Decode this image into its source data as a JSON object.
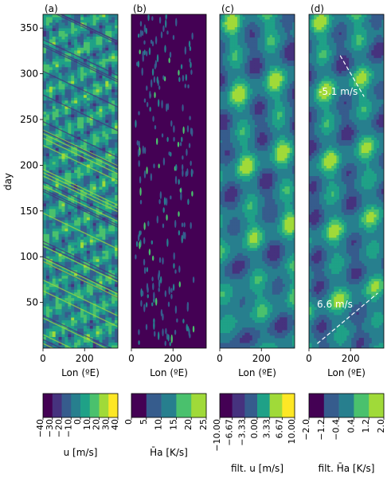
{
  "chart_data": {
    "type": "heatmap",
    "ylabel": "day",
    "ylim": [
      0,
      365
    ],
    "xlim": [
      0,
      360
    ],
    "yticks": [
      50,
      100,
      150,
      200,
      250,
      300,
      350
    ],
    "xticks": [
      0,
      200
    ],
    "xlabel": "Lon (ºE)",
    "panels": [
      {
        "label": "(a)",
        "field": "u",
        "colorbar": {
          "label": "u [m/s]",
          "ticks": [
            "−40",
            "−30",
            "−20",
            "−10",
            "0",
            "10",
            "20",
            "30",
            "40"
          ],
          "levels": 8
        },
        "annotations": []
      },
      {
        "label": "(b)",
        "field": "Ha",
        "colorbar": {
          "label": "H̄a [K/s]",
          "ticks": [
            "0",
            "5",
            "10",
            "15",
            "20",
            "25"
          ],
          "levels": 5
        },
        "annotations": []
      },
      {
        "label": "(c)",
        "field": "filt. u",
        "colorbar": {
          "label": "filt. u [m/s]",
          "ticks": [
            "−10.00",
            "−6.67",
            "−3.33",
            "0.00",
            "3.33",
            "6.67",
            "10.00"
          ],
          "levels": 6
        },
        "annotations": []
      },
      {
        "label": "(d)",
        "field": "filt. Ha",
        "colorbar": {
          "label": "filt. H̄a [K/s]",
          "ticks": [
            "−2.0",
            "−1.2",
            "−0.4",
            "0.4",
            "1.2",
            "2.0"
          ],
          "levels": 5
        },
        "annotations": [
          {
            "text": "-5.1 m/s",
            "line": [
              [
                150,
                320
              ],
              [
                265,
                275
              ]
            ]
          },
          {
            "text": "6.6 m/s",
            "line": [
              [
                40,
                5
              ],
              [
                330,
                60
              ]
            ]
          }
        ]
      }
    ]
  },
  "colors": {
    "viridis": [
      "#440154",
      "#46327e",
      "#365c8d",
      "#277f8e",
      "#1fa187",
      "#4ac16d",
      "#a0da39",
      "#fde725"
    ]
  }
}
